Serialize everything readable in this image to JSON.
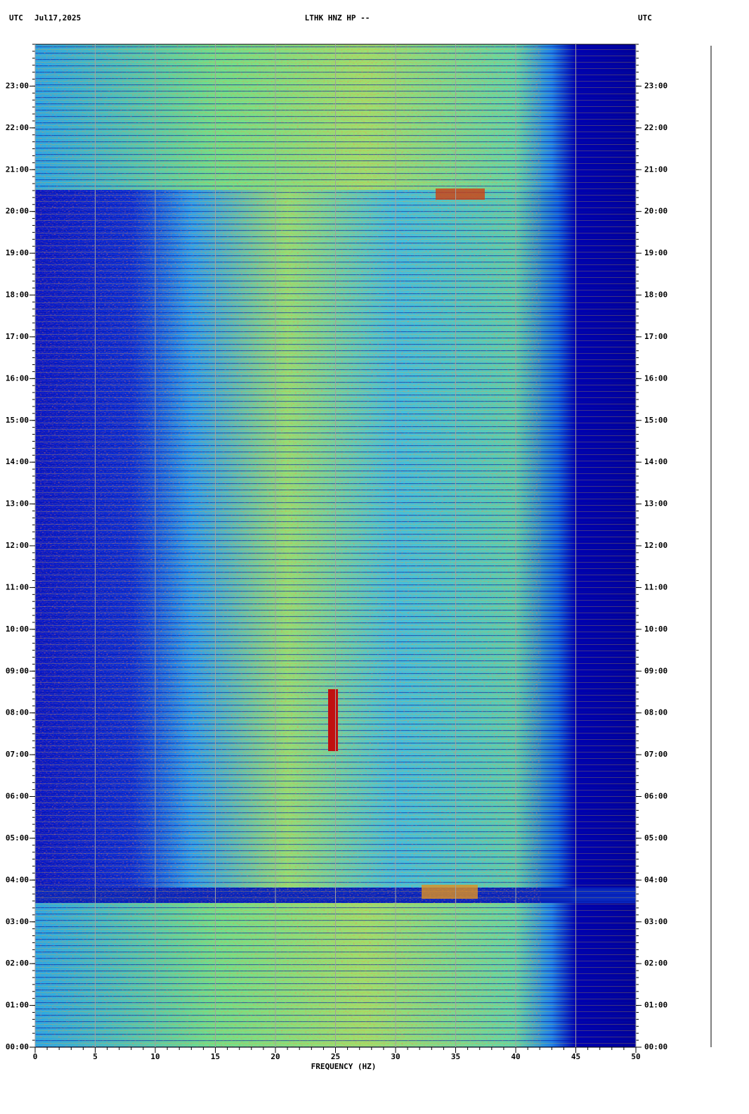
{
  "chart_data": {
    "type": "spectrogram",
    "title": "LTHK HNZ HP --",
    "left_label": "UTC",
    "date": "Jul17,2025",
    "right_label": "UTC",
    "xlabel": "FREQUENCY (HZ)",
    "xlim": [
      0,
      50
    ],
    "xticks": [
      0,
      5,
      10,
      15,
      20,
      25,
      30,
      35,
      40,
      45,
      50
    ],
    "ylim": [
      0,
      24
    ],
    "yticks": [
      {
        "value": 0,
        "label": "00:00"
      },
      {
        "value": 1,
        "label": "01:00"
      },
      {
        "value": 2,
        "label": "02:00"
      },
      {
        "value": 3,
        "label": "03:00"
      },
      {
        "value": 4,
        "label": "04:00"
      },
      {
        "value": 5,
        "label": "05:00"
      },
      {
        "value": 6,
        "label": "06:00"
      },
      {
        "value": 7,
        "label": "07:00"
      },
      {
        "value": 8,
        "label": "08:00"
      },
      {
        "value": 9,
        "label": "09:00"
      },
      {
        "value": 10,
        "label": "10:00"
      },
      {
        "value": 11,
        "label": "11:00"
      },
      {
        "value": 12,
        "label": "12:00"
      },
      {
        "value": 13,
        "label": "13:00"
      },
      {
        "value": 14,
        "label": "14:00"
      },
      {
        "value": 15,
        "label": "15:00"
      },
      {
        "value": 16,
        "label": "16:00"
      },
      {
        "value": 17,
        "label": "17:00"
      },
      {
        "value": 18,
        "label": "18:00"
      },
      {
        "value": 19,
        "label": "19:00"
      },
      {
        "value": 20,
        "label": "20:00"
      },
      {
        "value": 21,
        "label": "21:00"
      },
      {
        "value": 22,
        "label": "22:00"
      },
      {
        "value": 23,
        "label": "23:00"
      }
    ],
    "grid": true
  }
}
